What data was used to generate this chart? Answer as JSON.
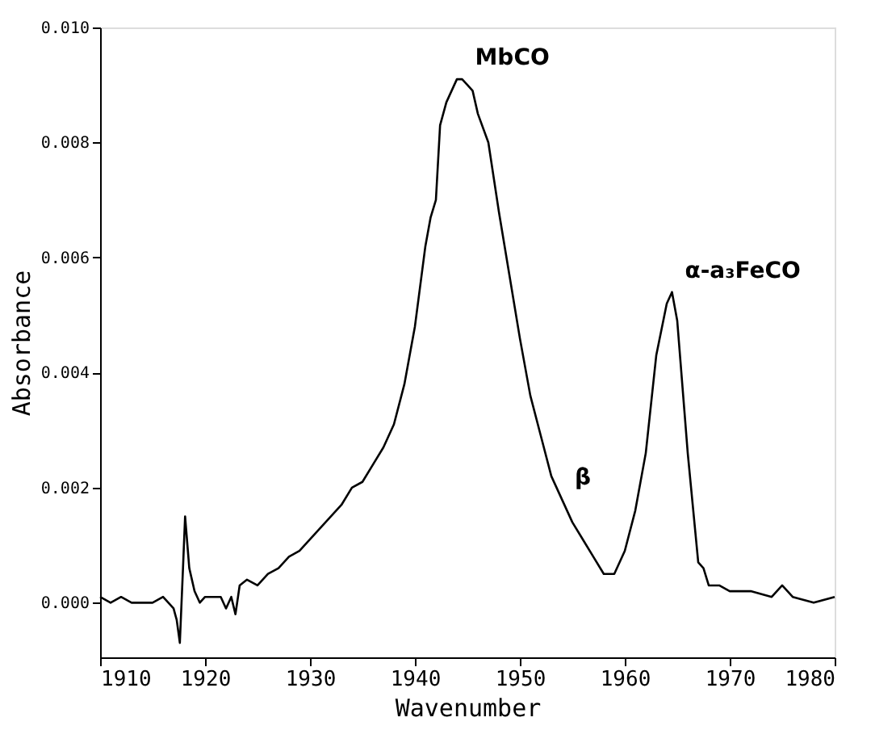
{
  "chart_data": {
    "type": "line",
    "xlabel": "Wavenumber",
    "ylabel": "Absorbance",
    "xlim": [
      1910,
      1980
    ],
    "xticks": [
      1910,
      1920,
      1930,
      1940,
      1950,
      1960,
      1970,
      1980
    ],
    "ylim": [
      -0.00095,
      0.01
    ],
    "yticks": [
      {
        "value": 0,
        "label": "0.000"
      },
      {
        "value": 0.002,
        "label": "0.002"
      },
      {
        "value": 0.004,
        "label": "0.004"
      },
      {
        "value": 0.006,
        "label": "0.006"
      },
      {
        "value": 0.008,
        "label": "0.008"
      },
      {
        "value": 0.01,
        "label": "0.010"
      }
    ],
    "grid": false,
    "marker": "none",
    "line_style": "solid",
    "annotations": [
      {
        "text": "MbCO",
        "x": 1944.5,
        "y": 0.0091
      },
      {
        "text": "α-a₃FeCO",
        "x": 1964.5,
        "y": 0.0054
      },
      {
        "text": "β",
        "x": 1954,
        "y": 0.0018
      }
    ],
    "series": [
      {
        "color": "#000000",
        "x": [
          1910,
          1911,
          1912,
          1913,
          1914,
          1915,
          1916,
          1917,
          1917.3,
          1917.6,
          1917.9,
          1918.1,
          1918.5,
          1919,
          1919.5,
          1920,
          1921,
          1921.5,
          1922,
          1922.5,
          1922.9,
          1923.3,
          1924,
          1925,
          1926,
          1927,
          1928,
          1929,
          1930,
          1931,
          1932,
          1933,
          1934,
          1935,
          1936,
          1937,
          1938,
          1939,
          1940,
          1941,
          1941.5,
          1942,
          1942.4,
          1943,
          1944,
          1944.5,
          1945,
          1945.5,
          1946,
          1947,
          1948,
          1949,
          1950,
          1951,
          1952,
          1953,
          1954,
          1955,
          1956,
          1957,
          1958,
          1959,
          1960,
          1961,
          1962,
          1963,
          1964,
          1964.5,
          1965,
          1966,
          1967,
          1967.5,
          1968,
          1969,
          1970,
          1972,
          1974,
          1975,
          1976,
          1978,
          1980
        ],
        "values": [
          0.0001,
          0.0,
          0.0001,
          0.0,
          0.0,
          0.0,
          0.0001,
          -0.0001,
          -0.0003,
          -0.0007,
          0.0006,
          0.0015,
          0.0006,
          0.0002,
          0.0,
          0.0001,
          0.0001,
          0.0001,
          -0.0001,
          0.0001,
          -0.0002,
          0.0003,
          0.0004,
          0.0003,
          0.0005,
          0.0006,
          0.0008,
          0.0009,
          0.0011,
          0.0013,
          0.0015,
          0.0017,
          0.002,
          0.0021,
          0.0024,
          0.0027,
          0.0031,
          0.0038,
          0.0048,
          0.0062,
          0.0067,
          0.007,
          0.0083,
          0.0087,
          0.0091,
          0.0091,
          0.009,
          0.0089,
          0.0085,
          0.008,
          0.0068,
          0.0057,
          0.0046,
          0.0036,
          0.0029,
          0.0022,
          0.0018,
          0.0014,
          0.0011,
          0.0008,
          0.0005,
          0.0005,
          0.0009,
          0.0016,
          0.0026,
          0.0043,
          0.0052,
          0.0054,
          0.0049,
          0.0026,
          0.0007,
          0.0006,
          0.0003,
          0.0003,
          0.0002,
          0.0002,
          0.0001,
          0.0003,
          0.0001,
          0.0,
          0.0001
        ]
      }
    ]
  }
}
